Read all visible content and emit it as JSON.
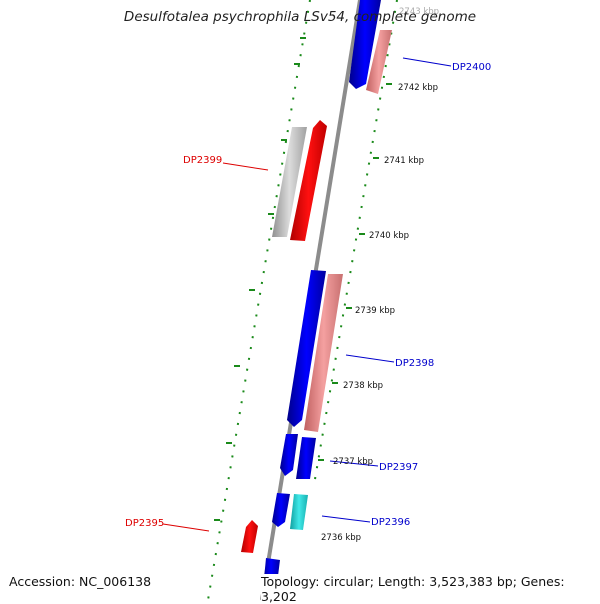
{
  "title": "Desulfotalea psychrophila LSv54, complete genome",
  "footer": {
    "accession": "Accession: NC_006138",
    "topology": "Topology: circular; Length: 3,523,383 bp; Genes: 3,202"
  },
  "scale_labels": [
    "2743 kbp",
    "2742 kbp",
    "2741 kbp",
    "2740 kbp",
    "2739 kbp",
    "2738 kbp",
    "2737 kbp",
    "2736 kbp"
  ],
  "gene_labels": {
    "dp2400": "DP2400",
    "dp2399": "DP2399",
    "dp2398": "DP2398",
    "dp2397": "DP2397",
    "dp2396": "DP2396",
    "dp2395": "DP2395"
  },
  "colors": {
    "backbone": "#888888",
    "forward_cds": "#0000ee",
    "reverse_cds": "#f08080",
    "red_feature": "#ff0000",
    "grey_feature": "#c0c0c0",
    "cyan_feature": "#20c8c8",
    "tick_dots": "#1a8a1a",
    "label_blue": "#0000cc",
    "label_red": "#dd0000"
  }
}
